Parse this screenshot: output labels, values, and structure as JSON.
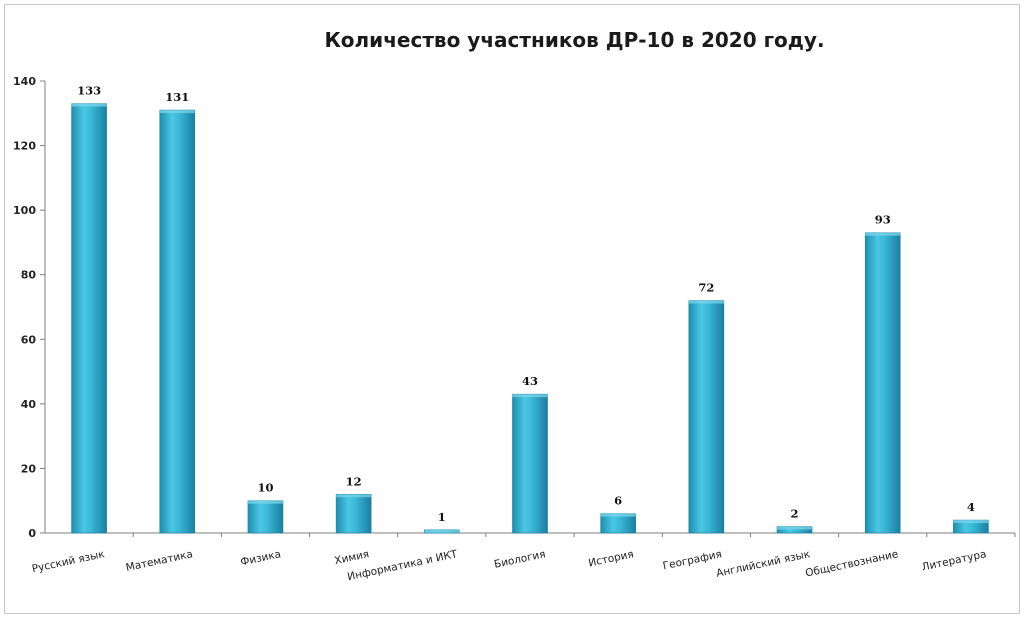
{
  "chart_data": {
    "type": "bar",
    "title": "Количество участников  ДР-10  в  2020 году.",
    "categories": [
      "Русский язык",
      "Математика",
      "Физика",
      "Химия",
      "Информатика и ИКТ",
      "Биология",
      "История",
      "География",
      "Английский язык",
      "Обществознание",
      "Литература"
    ],
    "values": [
      133,
      131,
      10,
      12,
      1,
      43,
      6,
      72,
      2,
      93,
      4
    ],
    "yticks": [
      "0",
      "20",
      "40",
      "60",
      "80",
      "100",
      "120",
      "140"
    ],
    "ylim": [
      0,
      140
    ],
    "grid": false,
    "legend": "none",
    "bar_color": "#31b3d3"
  }
}
